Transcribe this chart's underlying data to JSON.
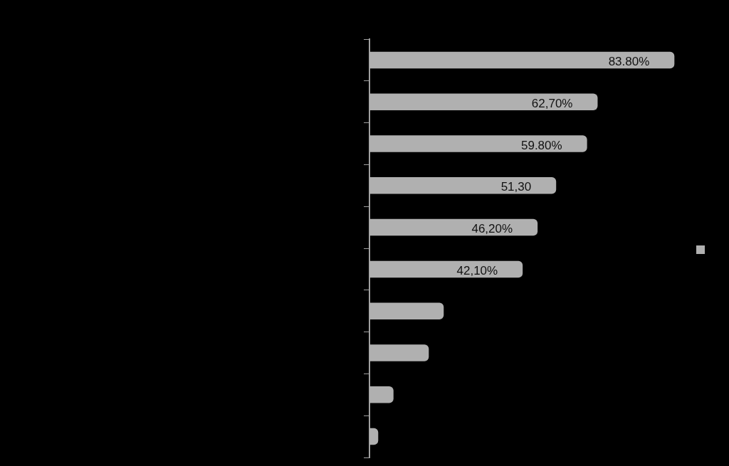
{
  "chart_data": {
    "type": "bar",
    "orientation": "horizontal",
    "categories": [
      null,
      null,
      null,
      null,
      null,
      null,
      null,
      null,
      null,
      null
    ],
    "series": [
      {
        "color": "#b0b0b0",
        "values": [
          83.8,
          62.7,
          59.8,
          51.3,
          46.2,
          42.1,
          20.4,
          16.3,
          6.6,
          2.4
        ],
        "value_labels": [
          "83.80%",
          "62,70%",
          "59.80%",
          "51,30",
          "46,20%",
          "42,10%",
          null,
          null,
          null,
          null
        ]
      }
    ]
  }
}
